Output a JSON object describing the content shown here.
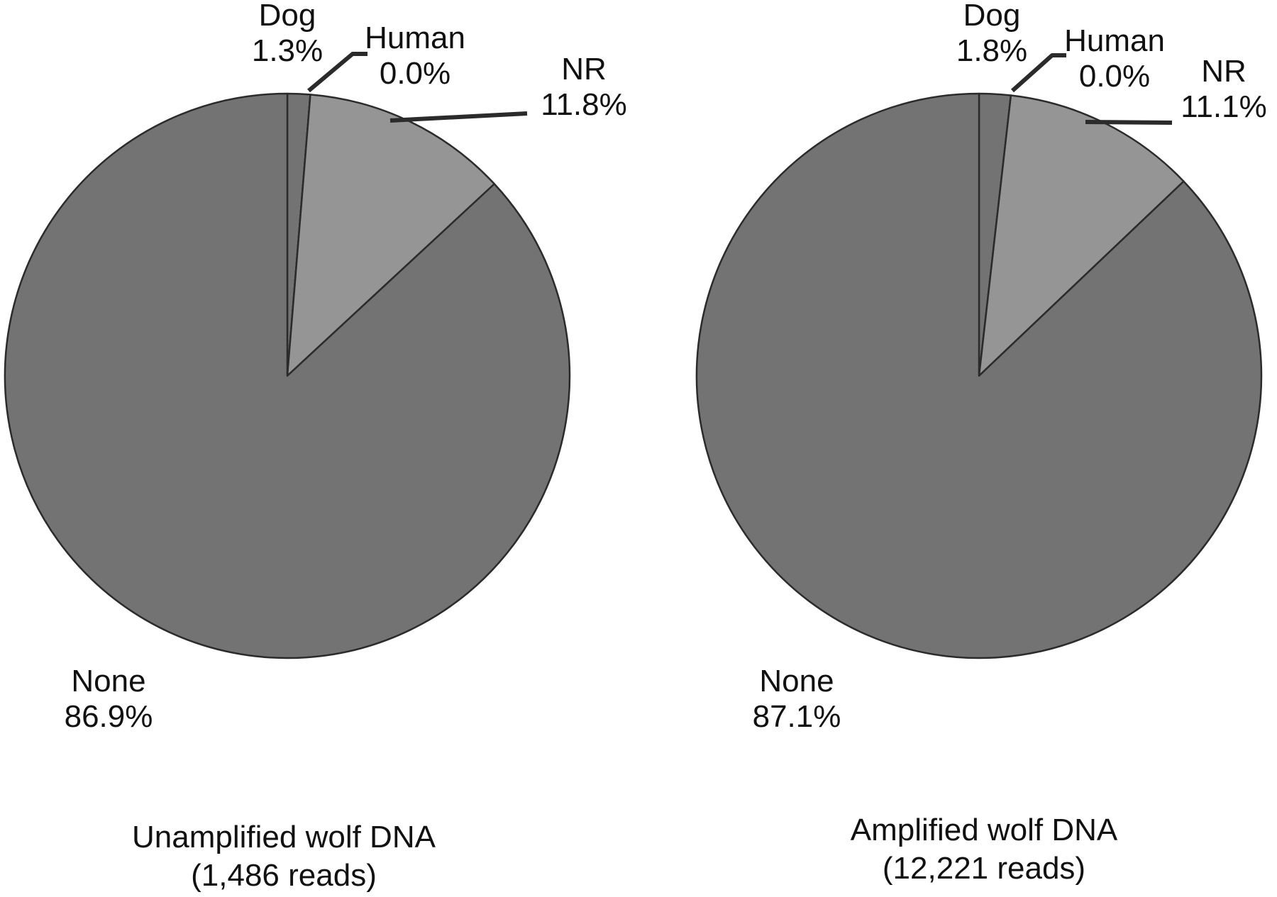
{
  "chart_data": [
    {
      "type": "pie",
      "caption": [
        "Unamplified wolf DNA",
        "(1,486 reads)"
      ],
      "slices": [
        {
          "name": "Dog",
          "value": 1.3,
          "label": "1.3%",
          "color": "#737373"
        },
        {
          "name": "Human",
          "value": 0.0,
          "label": "0.0%",
          "color": "#737373"
        },
        {
          "name": "NR",
          "value": 11.8,
          "label": "11.8%",
          "color": "#959595"
        },
        {
          "name": "None",
          "value": 86.9,
          "label": "86.9%",
          "color": "#737373"
        }
      ]
    },
    {
      "type": "pie",
      "caption": [
        "Amplified wolf DNA",
        "(12,221 reads)"
      ],
      "slices": [
        {
          "name": "Dog",
          "value": 1.8,
          "label": "1.8%",
          "color": "#737373"
        },
        {
          "name": "Human",
          "value": 0.0,
          "label": "0.0%",
          "color": "#737373"
        },
        {
          "name": "NR",
          "value": 11.1,
          "label": "11.1%",
          "color": "#959595"
        },
        {
          "name": "None",
          "value": 87.1,
          "label": "87.1%",
          "color": "#737373"
        }
      ]
    }
  ]
}
